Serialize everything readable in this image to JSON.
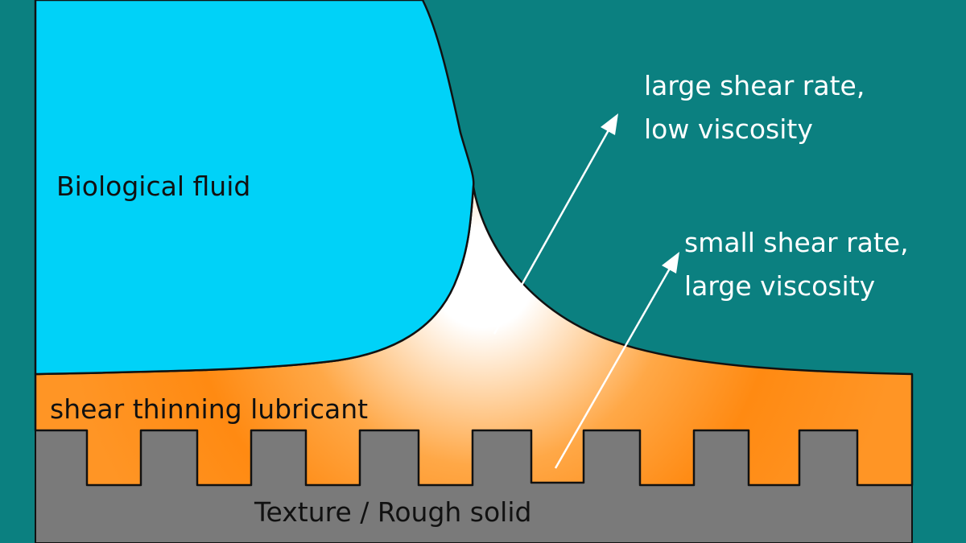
{
  "labels": {
    "biological_fluid": "Biological fluid",
    "lubricant": "shear thinning lubricant",
    "solid": "Texture / Rough solid",
    "large_shear_line1": "large shear rate,",
    "large_shear_line2": "low viscosity",
    "small_shear_line1": "small shear rate,",
    "small_shear_line2": "large viscosity"
  },
  "colors": {
    "background": "#0b8080",
    "biological_fluid": "#00d2f8",
    "lubricant": "#ff8a12",
    "lubricant_highlight": "#ffffff",
    "solid": "#7a7a7a",
    "arrows": "#ffffff"
  }
}
